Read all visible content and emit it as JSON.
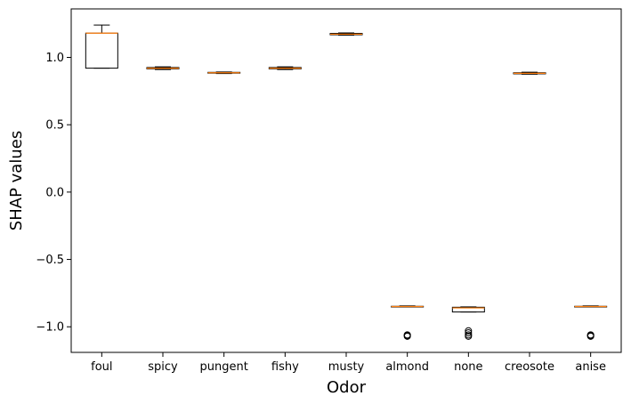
{
  "chart_data": {
    "type": "box",
    "xlabel": "Odor",
    "ylabel": "SHAP values",
    "ylim": [
      -1.19,
      1.36
    ],
    "yticks": [
      {
        "value": 1.0,
        "label": "1.0"
      },
      {
        "value": 0.5,
        "label": "0.5"
      },
      {
        "value": 0.0,
        "label": "0.0"
      },
      {
        "value": -0.5,
        "label": "−0.5"
      },
      {
        "value": -1.0,
        "label": "−1.0"
      }
    ],
    "categories": [
      "foul",
      "spicy",
      "pungent",
      "fishy",
      "musty",
      "almond",
      "none",
      "creosote",
      "anise"
    ],
    "boxes": [
      {
        "category": "foul",
        "whislo": 0.92,
        "q1": 0.92,
        "med": 1.18,
        "q3": 1.18,
        "whishi": 1.24,
        "fliers": []
      },
      {
        "category": "spicy",
        "whislo": 0.91,
        "q1": 0.915,
        "med": 0.92,
        "q3": 0.925,
        "whishi": 0.93,
        "fliers": []
      },
      {
        "category": "pungent",
        "whislo": 0.88,
        "q1": 0.883,
        "med": 0.886,
        "q3": 0.889,
        "whishi": 0.892,
        "fliers": []
      },
      {
        "category": "fishy",
        "whislo": 0.91,
        "q1": 0.915,
        "med": 0.92,
        "q3": 0.925,
        "whishi": 0.93,
        "fliers": []
      },
      {
        "category": "musty",
        "whislo": 1.165,
        "q1": 1.168,
        "med": 1.172,
        "q3": 1.178,
        "whishi": 1.182,
        "fliers": []
      },
      {
        "category": "almond",
        "whislo": -0.85,
        "q1": -0.85,
        "med": -0.85,
        "q3": -0.848,
        "whishi": -0.845,
        "fliers": [
          -1.06,
          -1.065,
          -1.07
        ]
      },
      {
        "category": "none",
        "whislo": -0.89,
        "q1": -0.89,
        "med": -0.86,
        "q3": -0.855,
        "whishi": -0.852,
        "fliers": [
          -1.03,
          -1.045,
          -1.06,
          -1.07
        ]
      },
      {
        "category": "creosote",
        "whislo": 0.875,
        "q1": 0.878,
        "med": 0.882,
        "q3": 0.886,
        "whishi": 0.89,
        "fliers": []
      },
      {
        "category": "anise",
        "whislo": -0.85,
        "q1": -0.85,
        "med": -0.85,
        "q3": -0.848,
        "whishi": -0.845,
        "fliers": [
          -1.06,
          -1.065,
          -1.07
        ]
      }
    ],
    "colors": {
      "box": "#000000",
      "median": "#ff7f0e",
      "flier": "#000000"
    },
    "grid": false
  }
}
